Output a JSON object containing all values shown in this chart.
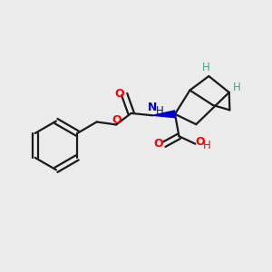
{
  "background_color": "#ebebeb",
  "bond_color": "#1a1a1a",
  "oxygen_color": "#ff0000",
  "nitrogen_color": "#0000cd",
  "stereo_h_color": "#3aaa8a",
  "wedge_bond_color": "#0000cd",
  "line_width": 1.6,
  "figsize": [
    3.0,
    3.0
  ],
  "dpi": 100,
  "xlim": [
    0,
    10
  ],
  "ylim": [
    0,
    10
  ]
}
